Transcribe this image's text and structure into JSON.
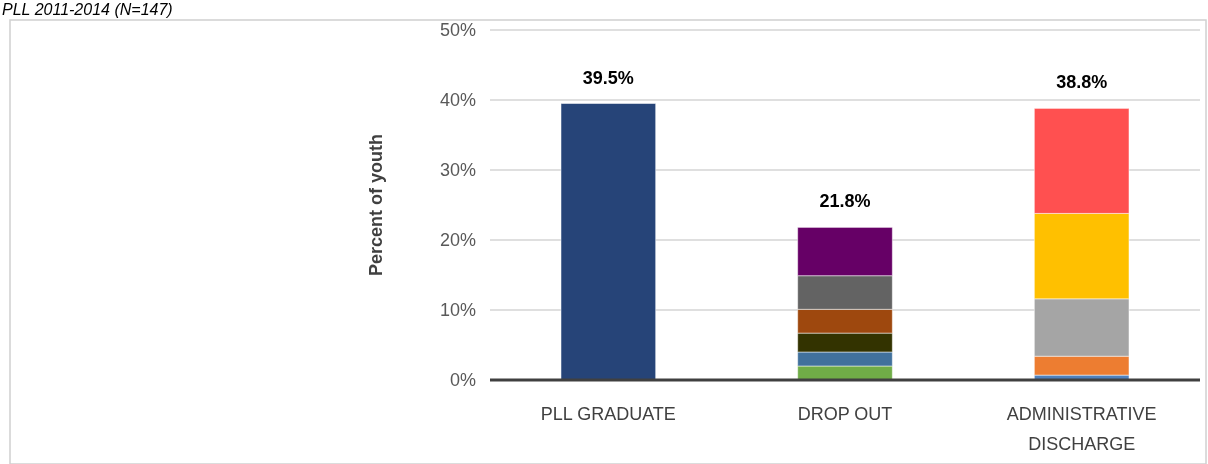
{
  "chart_data": {
    "type": "bar",
    "title": "PLL 2011-2014 (N=147)",
    "ylabel": "Percent of youth",
    "categories": [
      "PLL GRADUATE",
      "DROP OUT",
      "ADMINISTRATIVE DISCHARGE"
    ],
    "stacked": true,
    "series": [
      {
        "colors": [
          "#264478",
          "#70ad47",
          "#4f81bd"
        ],
        "values": [
          39.5,
          2.0,
          0.7
        ]
      },
      {
        "colors": [
          null,
          "#41719c",
          "#ed7d31"
        ],
        "values": [
          null,
          2.0,
          2.7
        ]
      },
      {
        "colors": [
          null,
          "#333300",
          "#a5a5a5"
        ],
        "values": [
          null,
          2.7,
          8.2
        ]
      },
      {
        "colors": [
          null,
          "#9e480e",
          "#ffc000"
        ],
        "values": [
          null,
          3.4,
          12.2
        ]
      },
      {
        "colors": [
          null,
          "#636363",
          "#ff5050"
        ],
        "values": [
          null,
          4.8,
          15.0
        ]
      },
      {
        "colors": [
          null,
          "#660066",
          null
        ],
        "values": [
          null,
          6.9,
          null
        ]
      }
    ],
    "totals": [
      "39.5%",
      "21.8%",
      "38.8%"
    ],
    "ylim": [
      0,
      50
    ],
    "yticks": [
      {
        "value": 0,
        "label": "0%"
      },
      {
        "value": 10,
        "label": "10%"
      },
      {
        "value": 20,
        "label": "20%"
      },
      {
        "value": 30,
        "label": "30%"
      },
      {
        "value": 40,
        "label": "40%"
      },
      {
        "value": 50,
        "label": "50%"
      }
    ],
    "grid": "y"
  }
}
